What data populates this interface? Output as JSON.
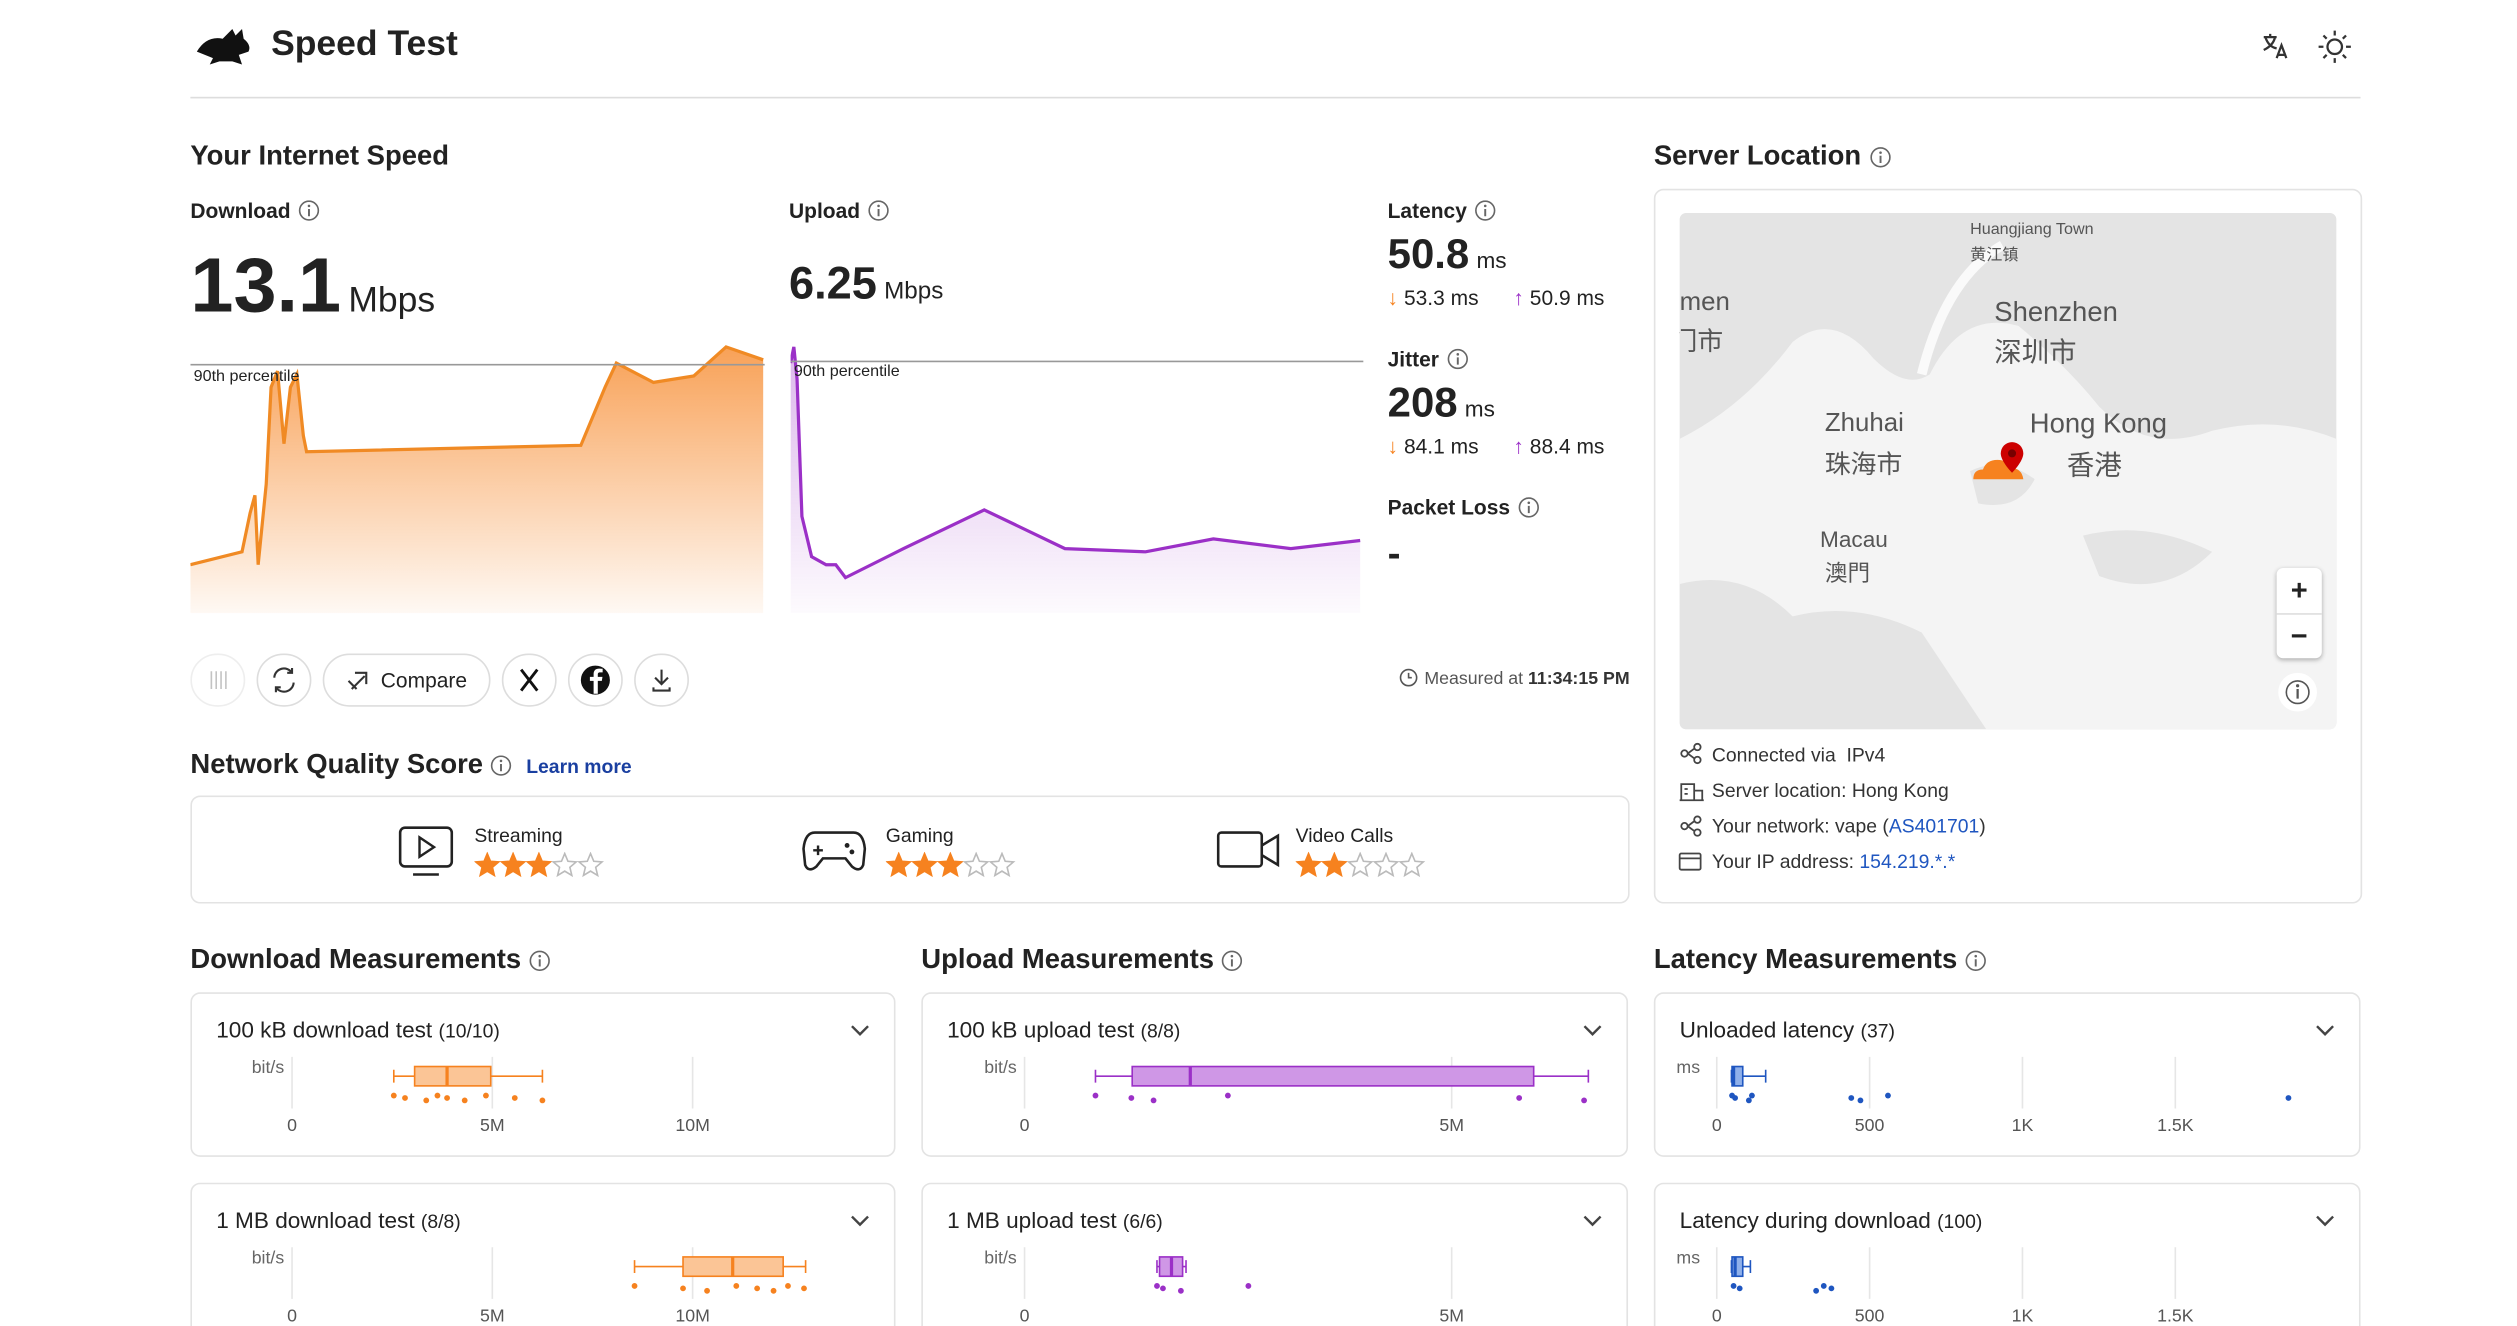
{
  "header": {
    "title": "Speed Test"
  },
  "speed": {
    "title": "Your Internet Speed",
    "download": {
      "label": "Download",
      "value": 13.1,
      "unit": "Mbps",
      "percentile": "90th percentile"
    },
    "upload": {
      "label": "Upload",
      "value": 6.25,
      "unit": "Mbps",
      "percentile": "90th percentile"
    },
    "latency": {
      "label": "Latency",
      "value": 50.8,
      "unit": "ms",
      "down": "53.3 ms",
      "up": "50.9 ms"
    },
    "jitter": {
      "label": "Jitter",
      "value": 208,
      "unit": "ms",
      "down": "84.1 ms",
      "up": "88.4 ms"
    },
    "packet_loss": {
      "label": "Packet Loss",
      "value": "-"
    },
    "compare": "Compare",
    "measured": {
      "label": "Measured at",
      "time": "11:34:15 PM"
    }
  },
  "quality": {
    "title": "Network Quality Score",
    "link": "Learn more",
    "items": [
      {
        "label": "Streaming",
        "stars": 3
      },
      {
        "label": "Gaming",
        "stars": 3
      },
      {
        "label": "Video Calls",
        "stars": 2
      }
    ]
  },
  "server": {
    "title": "Server Location",
    "map_labels": [
      "Huangjiang Town",
      "黄江镇",
      "Shenzhen",
      "深圳市",
      "Zhuhai",
      "珠海市",
      "Hong Kong",
      "香港",
      "Macau",
      "澳門",
      "men",
      "门市"
    ],
    "zoom": [
      "+",
      "−"
    ],
    "connected": {
      "label": "Connected via",
      "value": "IPv4"
    },
    "location": {
      "label": "Server location:",
      "value": "Hong Kong"
    },
    "network": {
      "label": "Your network:",
      "value": "vape (",
      "link": "AS401701",
      "tail": ")"
    },
    "ip": {
      "label": "Your IP address:",
      "value": "154.219.*.*"
    }
  },
  "measurements": [
    {
      "title": "Download Measurements",
      "color": "#f6821f",
      "fill": "#fbc596",
      "xlim": [
        0,
        14500000
      ],
      "ticks": [
        0,
        {
          "value": 5000000,
          "label": "5M"
        },
        {
          "value": 10000000,
          "label": "10M"
        }
      ],
      "tests": [
        {
          "name": "100 kB download test",
          "count": "(10/10)",
          "unit": "bit/s",
          "box": [
            2540000,
            3060000,
            3870000,
            4960000,
            6250000
          ],
          "points": [
            2540000,
            2820000,
            3350000,
            3630000,
            3870000,
            4310000,
            4840000,
            5560000,
            6250000
          ]
        },
        {
          "name": "1 MB download test",
          "count": "(8/8)",
          "unit": "bit/s",
          "box": [
            8550000,
            9760000,
            11000000,
            12260000,
            12820000
          ],
          "points": [
            8550000,
            9760000,
            10360000,
            11090000,
            11610000,
            12020000,
            12380000,
            12780000
          ]
        }
      ]
    },
    {
      "title": "Upload Measurements",
      "color": "#9b30c7",
      "fill": "#cf97e6",
      "xlim": [
        0,
        6800000
      ],
      "ticks": [
        0,
        {
          "value": 5000000,
          "label": "5M"
        }
      ],
      "tests": [
        {
          "name": "100 kB upload test",
          "count": "(8/8)",
          "unit": "bit/s",
          "box": [
            830000,
            1260000,
            1940000,
            5960000,
            6600000
          ],
          "points": [
            830000,
            1250000,
            1510000,
            2380000,
            5790000,
            6550000
          ]
        },
        {
          "name": "1 MB upload test",
          "count": "(6/6)",
          "unit": "bit/s",
          "box": [
            1550000,
            1580000,
            1720000,
            1850000,
            1890000
          ],
          "points": [
            1550000,
            1620000,
            1830000,
            2620000
          ]
        }
      ]
    },
    {
      "title": "Latency Measurements",
      "color": "#1f56c0",
      "fill": "#8fb0ea",
      "xlim": [
        0,
        1900
      ],
      "ticks": [
        0,
        500,
        {
          "value": 1000,
          "label": "1K"
        },
        {
          "value": 1500,
          "label": "1.5K"
        }
      ],
      "tests": [
        {
          "name": "Unloaded latency",
          "count": "(37)",
          "unit": "ms",
          "box": [
            48,
            50,
            55,
            85,
            160
          ],
          "points": [
            50,
            60,
            105,
            115,
            440,
            470,
            560,
            1870
          ]
        },
        {
          "name": "Latency during download",
          "count": "(100)",
          "unit": "ms",
          "box": [
            48,
            50,
            60,
            85,
            110
          ],
          "points": [
            55,
            75,
            325,
            350,
            375
          ]
        }
      ]
    }
  ]
}
